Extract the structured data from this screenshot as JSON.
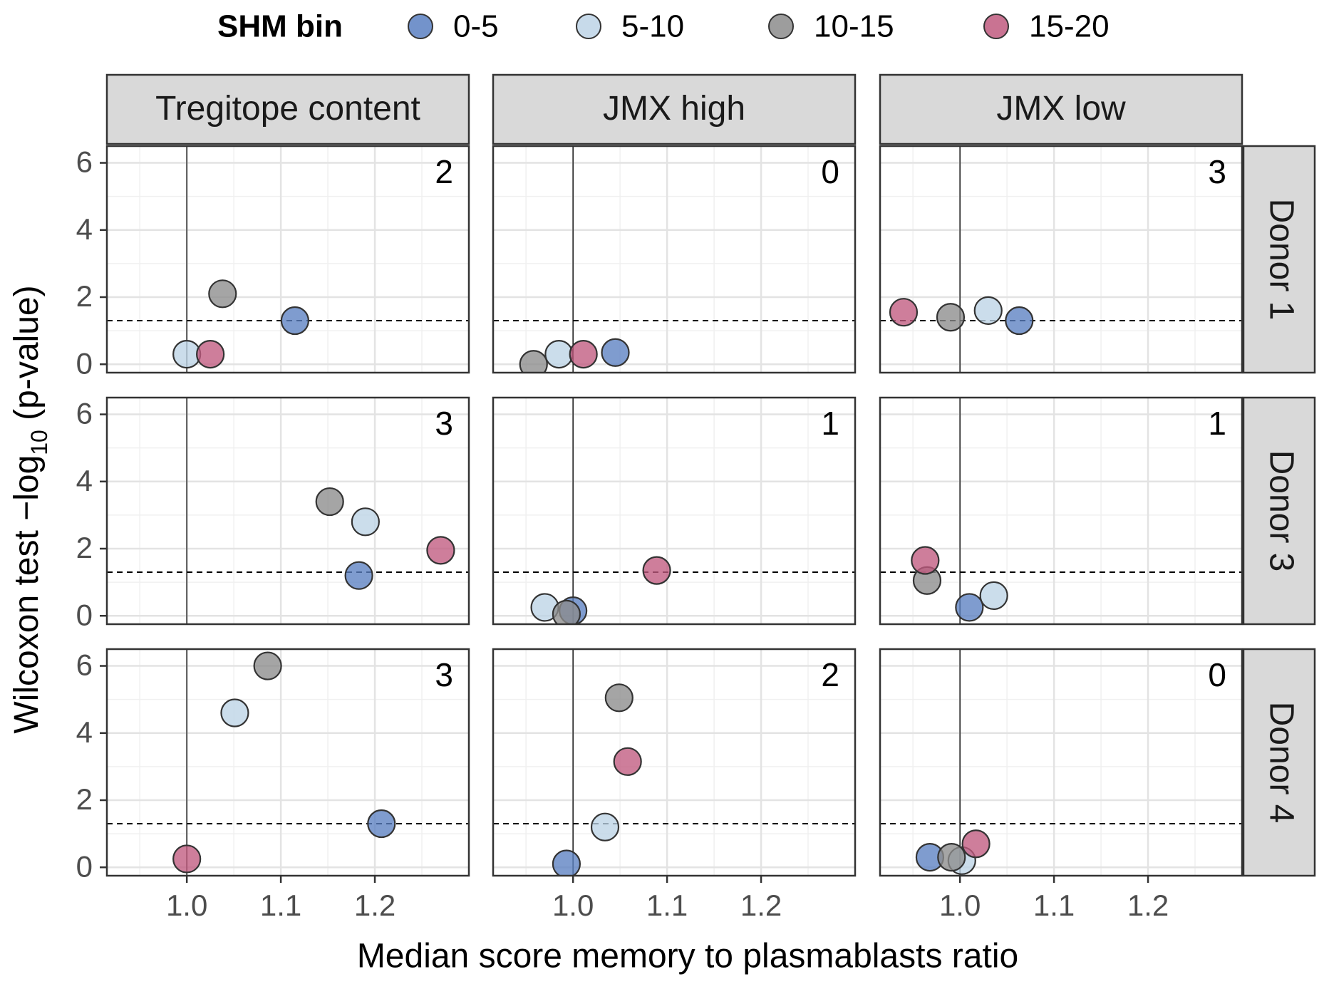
{
  "chart_data": {
    "type": "scatter",
    "facet_columns": [
      "Tregitope content",
      "JMX high",
      "JMX low"
    ],
    "facet_rows": [
      "Donor 1",
      "Donor 3",
      "Donor 4"
    ],
    "xlabel": "Median score memory to plasmablasts ratio",
    "ylabel_main": "Wilcoxon test −log",
    "ylabel_sub": "10",
    "ylabel_tail": " (p-value)",
    "xlim": [
      0.915,
      1.3
    ],
    "ylim": [
      -0.25,
      6.5
    ],
    "x_ticks": [
      1.0,
      1.1,
      1.2
    ],
    "x_tick_labels": [
      "1.0",
      "1.1",
      "1.2"
    ],
    "y_ticks": [
      0,
      2,
      4,
      6
    ],
    "y_tick_labels": [
      "0",
      "2",
      "4",
      "6"
    ],
    "vline_x": 1.0,
    "hline_y": 1.3,
    "legend": {
      "title": "SHM bin",
      "placement": "top",
      "entries": [
        {
          "label": "0-5",
          "color": "#5b80c2"
        },
        {
          "label": "5-10",
          "color": "#bdd3e6"
        },
        {
          "label": "10-15",
          "color": "#8c8c8c"
        },
        {
          "label": "15-20",
          "color": "#c05a7f"
        }
      ]
    },
    "panels": [
      {
        "row": 0,
        "col": 0,
        "count": "2",
        "points": [
          {
            "bin": "0-5",
            "x": 1.115,
            "y": 1.3
          },
          {
            "bin": "5-10",
            "x": 1.0,
            "y": 0.3
          },
          {
            "bin": "10-15",
            "x": 1.038,
            "y": 2.1
          },
          {
            "bin": "15-20",
            "x": 1.025,
            "y": 0.3
          }
        ]
      },
      {
        "row": 0,
        "col": 1,
        "count": "0",
        "points": [
          {
            "bin": "0-5",
            "x": 1.045,
            "y": 0.35
          },
          {
            "bin": "5-10",
            "x": 0.985,
            "y": 0.3
          },
          {
            "bin": "10-15",
            "x": 0.958,
            "y": 0.0
          },
          {
            "bin": "15-20",
            "x": 1.011,
            "y": 0.3
          }
        ]
      },
      {
        "row": 0,
        "col": 2,
        "count": "3",
        "points": [
          {
            "bin": "0-5",
            "x": 1.063,
            "y": 1.3
          },
          {
            "bin": "5-10",
            "x": 1.03,
            "y": 1.6
          },
          {
            "bin": "10-15",
            "x": 0.99,
            "y": 1.4
          },
          {
            "bin": "15-20",
            "x": 0.94,
            "y": 1.55
          }
        ]
      },
      {
        "row": 1,
        "col": 0,
        "count": "3",
        "points": [
          {
            "bin": "0-5",
            "x": 1.183,
            "y": 1.2
          },
          {
            "bin": "5-10",
            "x": 1.19,
            "y": 2.8
          },
          {
            "bin": "10-15",
            "x": 1.152,
            "y": 3.4
          },
          {
            "bin": "15-20",
            "x": 1.27,
            "y": 1.95
          }
        ]
      },
      {
        "row": 1,
        "col": 1,
        "count": "1",
        "points": [
          {
            "bin": "0-5",
            "x": 1.0,
            "y": 0.15
          },
          {
            "bin": "5-10",
            "x": 0.97,
            "y": 0.25
          },
          {
            "bin": "10-15",
            "x": 0.993,
            "y": 0.05
          },
          {
            "bin": "15-20",
            "x": 1.089,
            "y": 1.35
          }
        ]
      },
      {
        "row": 1,
        "col": 2,
        "count": "1",
        "points": [
          {
            "bin": "0-5",
            "x": 1.01,
            "y": 0.25
          },
          {
            "bin": "5-10",
            "x": 1.036,
            "y": 0.6
          },
          {
            "bin": "10-15",
            "x": 0.965,
            "y": 1.05
          },
          {
            "bin": "15-20",
            "x": 0.963,
            "y": 1.65
          }
        ]
      },
      {
        "row": 2,
        "col": 0,
        "count": "3",
        "points": [
          {
            "bin": "0-5",
            "x": 1.207,
            "y": 1.3
          },
          {
            "bin": "5-10",
            "x": 1.051,
            "y": 4.6
          },
          {
            "bin": "10-15",
            "x": 1.086,
            "y": 6.0
          },
          {
            "bin": "15-20",
            "x": 1.0,
            "y": 0.25
          }
        ]
      },
      {
        "row": 2,
        "col": 1,
        "count": "2",
        "points": [
          {
            "bin": "0-5",
            "x": 0.993,
            "y": 0.1
          },
          {
            "bin": "5-10",
            "x": 1.034,
            "y": 1.2
          },
          {
            "bin": "10-15",
            "x": 1.049,
            "y": 5.05
          },
          {
            "bin": "15-20",
            "x": 1.058,
            "y": 3.15
          }
        ]
      },
      {
        "row": 2,
        "col": 2,
        "count": "0",
        "points": [
          {
            "bin": "0-5",
            "x": 0.968,
            "y": 0.3
          },
          {
            "bin": "5-10",
            "x": 1.002,
            "y": 0.2
          },
          {
            "bin": "10-15",
            "x": 0.991,
            "y": 0.3
          },
          {
            "bin": "15-20",
            "x": 1.017,
            "y": 0.7
          }
        ]
      }
    ]
  }
}
